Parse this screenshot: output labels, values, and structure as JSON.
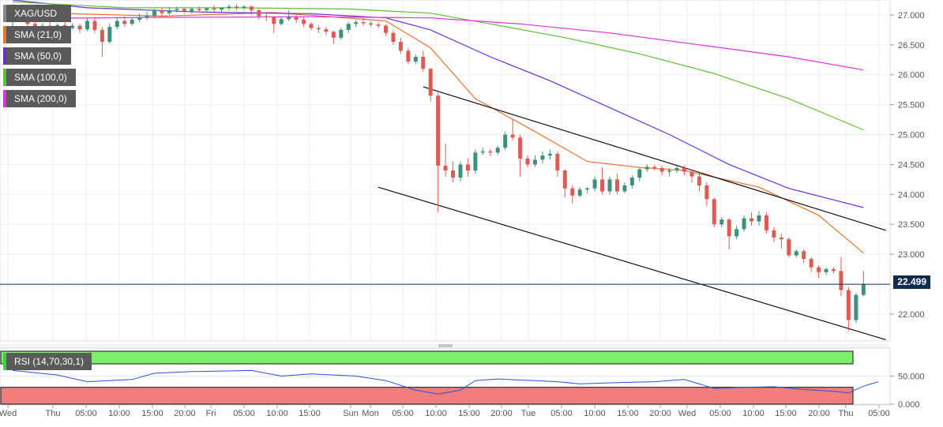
{
  "legend": {
    "symbol": "XAG/USD",
    "indicators": [
      {
        "label": "SMA (21,0)",
        "color": "#e8742a"
      },
      {
        "label": "SMA (50,0)",
        "color": "#6b2fd6"
      },
      {
        "label": "SMA (100,0)",
        "color": "#5cc02f"
      },
      {
        "label": "SMA (200,0)",
        "color": "#e02fe0"
      }
    ]
  },
  "rsi": {
    "label": "RSI (14,70,30,1)",
    "ticks": [
      "50.000",
      "0.000"
    ],
    "upper_band": 70,
    "lower_band": 30
  },
  "last_price": "22.499",
  "chart_data": {
    "type": "candlestick",
    "symbol": "XAG/USD",
    "price_axis": {
      "ticks": [
        "27.000",
        "26.500",
        "26.000",
        "25.500",
        "25.000",
        "24.500",
        "24.000",
        "23.500",
        "23.000",
        "22.000"
      ],
      "ylim": [
        21.55,
        27.25
      ]
    },
    "time_axis": {
      "ticks": [
        "Wed",
        "Thu",
        "05:00",
        "10:00",
        "15:00",
        "20:00",
        "Fri",
        "05:00",
        "10:00",
        "15:00",
        "Sun",
        "Mon",
        "05:00",
        "10:00",
        "15:00",
        "20:00",
        "Tue",
        "05:00",
        "10:00",
        "15:00",
        "20:00",
        "Wed",
        "05:00",
        "10:00",
        "15:00",
        "20:00",
        "Thu",
        "05:00"
      ]
    },
    "candles": [
      [
        26.9,
        27.18,
        27.1,
        26.8
      ],
      [
        27.1,
        27.12,
        26.95,
        26.9
      ],
      [
        26.95,
        26.97,
        26.85,
        26.8
      ],
      [
        26.85,
        26.88,
        26.78,
        26.75
      ],
      [
        26.78,
        26.86,
        26.82,
        26.74
      ],
      [
        26.82,
        26.88,
        26.8,
        26.76
      ],
      [
        26.8,
        26.86,
        26.83,
        26.77
      ],
      [
        26.83,
        26.88,
        26.78,
        26.74
      ],
      [
        26.78,
        26.86,
        26.82,
        26.76
      ],
      [
        26.82,
        26.85,
        26.76,
        26.7
      ],
      [
        26.76,
        26.95,
        26.9,
        26.73
      ],
      [
        26.9,
        26.95,
        26.75,
        26.7
      ],
      [
        26.75,
        26.8,
        26.55,
        26.3
      ],
      [
        26.55,
        26.86,
        26.8,
        26.52
      ],
      [
        26.8,
        26.95,
        26.9,
        26.76
      ],
      [
        26.9,
        26.98,
        26.85,
        26.8
      ],
      [
        26.85,
        26.95,
        26.92,
        26.82
      ],
      [
        26.92,
        27.02,
        26.96,
        26.88
      ],
      [
        26.96,
        27.05,
        26.99,
        26.92
      ],
      [
        26.99,
        27.1,
        27.08,
        26.95
      ],
      [
        27.08,
        27.12,
        27.03,
        26.98
      ],
      [
        27.03,
        27.12,
        27.08,
        27.0
      ],
      [
        27.08,
        27.14,
        27.1,
        27.04
      ],
      [
        27.1,
        27.12,
        27.06,
        27.02
      ],
      [
        27.06,
        27.12,
        27.1,
        27.02
      ],
      [
        27.1,
        27.14,
        27.08,
        27.04
      ],
      [
        27.08,
        27.12,
        27.11,
        27.05
      ],
      [
        27.11,
        27.16,
        27.09,
        27.05
      ],
      [
        27.09,
        27.13,
        27.12,
        27.05
      ],
      [
        27.12,
        27.18,
        27.14,
        27.08
      ],
      [
        27.14,
        27.18,
        27.12,
        27.08
      ],
      [
        27.12,
        27.16,
        27.14,
        27.08
      ],
      [
        27.14,
        27.16,
        27.08,
        27.0
      ],
      [
        27.08,
        27.1,
        26.98,
        26.92
      ],
      [
        26.98,
        27.02,
        26.96,
        26.9
      ],
      [
        26.96,
        26.98,
        26.85,
        26.7
      ],
      [
        26.85,
        26.96,
        26.93,
        26.82
      ],
      [
        26.93,
        27.08,
        26.97,
        26.9
      ],
      [
        26.97,
        27.0,
        26.92,
        26.86
      ],
      [
        26.92,
        26.96,
        26.85,
        26.8
      ],
      [
        26.85,
        26.88,
        26.78,
        26.74
      ],
      [
        26.78,
        26.82,
        26.76,
        26.7
      ],
      [
        26.76,
        26.8,
        26.72,
        26.66
      ],
      [
        26.72,
        26.74,
        26.62,
        26.52
      ],
      [
        26.62,
        26.78,
        26.75,
        26.58
      ],
      [
        26.75,
        26.88,
        26.85,
        26.7
      ],
      [
        26.85,
        26.92,
        26.88,
        26.8
      ],
      [
        26.88,
        26.95,
        26.86,
        26.82
      ],
      [
        26.86,
        26.9,
        26.84,
        26.8
      ],
      [
        26.84,
        26.88,
        26.82,
        26.78
      ],
      [
        26.82,
        26.85,
        26.7,
        26.65
      ],
      [
        26.7,
        26.74,
        26.55,
        26.5
      ],
      [
        26.55,
        26.62,
        26.4,
        26.35
      ],
      [
        26.4,
        26.45,
        26.22,
        26.18
      ],
      [
        26.22,
        26.34,
        26.3,
        26.18
      ],
      [
        26.3,
        26.4,
        26.1,
        26.05
      ],
      [
        26.1,
        26.12,
        25.65,
        25.55
      ],
      [
        25.65,
        25.7,
        24.48,
        23.7
      ],
      [
        24.48,
        24.85,
        24.4,
        24.3
      ],
      [
        24.4,
        24.55,
        24.28,
        24.2
      ],
      [
        24.28,
        24.55,
        24.5,
        24.22
      ],
      [
        24.5,
        24.6,
        24.4,
        24.3
      ],
      [
        24.4,
        24.75,
        24.7,
        24.35
      ],
      [
        24.7,
        24.78,
        24.72,
        24.66
      ],
      [
        24.72,
        24.76,
        24.7,
        24.64
      ],
      [
        24.7,
        24.82,
        24.78,
        24.66
      ],
      [
        24.78,
        25.05,
        25.0,
        24.74
      ],
      [
        25.0,
        25.25,
        24.95,
        24.9
      ],
      [
        24.95,
        25.0,
        24.6,
        24.3
      ],
      [
        24.6,
        24.65,
        24.5,
        24.45
      ],
      [
        24.5,
        24.65,
        24.58,
        24.46
      ],
      [
        24.58,
        24.72,
        24.65,
        24.52
      ],
      [
        24.65,
        24.75,
        24.68,
        24.58
      ],
      [
        24.68,
        24.72,
        24.4,
        24.3
      ],
      [
        24.4,
        24.42,
        24.1,
        23.95
      ],
      [
        24.1,
        24.15,
        23.98,
        23.85
      ],
      [
        23.98,
        24.12,
        24.08,
        23.95
      ],
      [
        24.08,
        24.12,
        24.1,
        24.02
      ],
      [
        24.1,
        24.3,
        24.25,
        24.05
      ],
      [
        24.25,
        24.45,
        24.05,
        24.0
      ],
      [
        24.05,
        24.3,
        24.25,
        24.0
      ],
      [
        24.25,
        24.35,
        24.05,
        24.0
      ],
      [
        24.05,
        24.2,
        24.15,
        24.02
      ],
      [
        24.15,
        24.32,
        24.28,
        24.1
      ],
      [
        24.28,
        24.45,
        24.42,
        24.22
      ],
      [
        24.42,
        24.5,
        24.46,
        24.38
      ],
      [
        24.46,
        24.5,
        24.44,
        24.4
      ],
      [
        24.44,
        24.48,
        24.38,
        24.32
      ],
      [
        24.38,
        24.44,
        24.4,
        24.3
      ],
      [
        24.4,
        24.48,
        24.44,
        24.36
      ],
      [
        24.44,
        24.48,
        24.38,
        24.32
      ],
      [
        24.38,
        24.42,
        24.3,
        24.2
      ],
      [
        24.3,
        24.35,
        24.15,
        24.05
      ],
      [
        24.15,
        24.2,
        23.92,
        23.8
      ],
      [
        23.92,
        23.95,
        23.5,
        23.45
      ],
      [
        23.5,
        23.62,
        23.58,
        23.45
      ],
      [
        23.58,
        23.6,
        23.3,
        23.08
      ],
      [
        23.3,
        23.48,
        23.42,
        23.25
      ],
      [
        23.42,
        23.65,
        23.6,
        23.38
      ],
      [
        23.6,
        23.7,
        23.55,
        23.48
      ],
      [
        23.55,
        23.72,
        23.65,
        23.48
      ],
      [
        23.65,
        23.7,
        23.4,
        23.35
      ],
      [
        23.4,
        23.45,
        23.28,
        23.2
      ],
      [
        23.28,
        23.35,
        23.25,
        23.1
      ],
      [
        23.25,
        23.28,
        22.98,
        22.95
      ],
      [
        22.98,
        23.08,
        23.05,
        22.95
      ],
      [
        23.05,
        23.08,
        22.92,
        22.85
      ],
      [
        22.92,
        22.95,
        22.78,
        22.7
      ],
      [
        22.78,
        22.82,
        22.7,
        22.6
      ],
      [
        22.7,
        22.78,
        22.75,
        22.65
      ],
      [
        22.75,
        22.78,
        22.72,
        22.68
      ],
      [
        22.72,
        22.95,
        22.4,
        22.3
      ],
      [
        22.4,
        22.45,
        21.9,
        21.72
      ],
      [
        21.9,
        22.35,
        22.32,
        21.85
      ],
      [
        22.32,
        22.72,
        22.5,
        22.3
      ]
    ],
    "sma": {
      "SMA (21,0)": [
        [
          0,
          27.05
        ],
        [
          20,
          26.98
        ],
        [
          35,
          27.04
        ],
        [
          50,
          26.9
        ],
        [
          56,
          26.45
        ],
        [
          62,
          25.6
        ],
        [
          70,
          25.05
        ],
        [
          77,
          24.55
        ],
        [
          84,
          24.45
        ],
        [
          90,
          24.4
        ],
        [
          100,
          24.12
        ],
        [
          108,
          23.65
        ],
        [
          114,
          23.02
        ]
      ],
      "SMA (50,0)": [
        [
          0,
          27.25
        ],
        [
          10,
          27.12
        ],
        [
          25,
          27.05
        ],
        [
          40,
          27.02
        ],
        [
          50,
          26.95
        ],
        [
          56,
          26.75
        ],
        [
          64,
          26.3
        ],
        [
          72,
          25.9
        ],
        [
          80,
          25.45
        ],
        [
          88,
          25.0
        ],
        [
          96,
          24.5
        ],
        [
          104,
          24.1
        ],
        [
          114,
          23.78
        ]
      ],
      "SMA (100,0)": [
        [
          0,
          27.22
        ],
        [
          15,
          27.12
        ],
        [
          30,
          27.12
        ],
        [
          45,
          27.1
        ],
        [
          56,
          27.03
        ],
        [
          64,
          26.85
        ],
        [
          74,
          26.62
        ],
        [
          84,
          26.35
        ],
        [
          94,
          26.02
        ],
        [
          104,
          25.6
        ],
        [
          114,
          25.08
        ]
      ],
      "SMA (200,0)": [
        [
          0,
          26.94
        ],
        [
          20,
          26.96
        ],
        [
          40,
          26.97
        ],
        [
          56,
          26.95
        ],
        [
          68,
          26.85
        ],
        [
          80,
          26.7
        ],
        [
          92,
          26.5
        ],
        [
          104,
          26.3
        ],
        [
          114,
          26.08
        ]
      ]
    },
    "channel_lines": [
      {
        "from": [
          55,
          25.8
        ],
        "to": [
          117,
          23.4
        ]
      },
      {
        "from": [
          49,
          24.12
        ],
        "to": [
          117,
          21.57
        ]
      }
    ],
    "rsi_series": [
      [
        0,
        60
      ],
      [
        6,
        52
      ],
      [
        10,
        40
      ],
      [
        16,
        44
      ],
      [
        19,
        55
      ],
      [
        24,
        58
      ],
      [
        32,
        60
      ],
      [
        36,
        50
      ],
      [
        40,
        54
      ],
      [
        46,
        50
      ],
      [
        50,
        42
      ],
      [
        54,
        25
      ],
      [
        57,
        18
      ],
      [
        60,
        25
      ],
      [
        62,
        42
      ],
      [
        65,
        45
      ],
      [
        68,
        43
      ],
      [
        70,
        42
      ],
      [
        73,
        40
      ],
      [
        76,
        36
      ],
      [
        80,
        38
      ],
      [
        86,
        40
      ],
      [
        90,
        44
      ],
      [
        92,
        36
      ],
      [
        94,
        28
      ],
      [
        98,
        30
      ],
      [
        102,
        31
      ],
      [
        106,
        26
      ],
      [
        110,
        23
      ],
      [
        112,
        20
      ],
      [
        114,
        32
      ],
      [
        116,
        40
      ]
    ]
  }
}
